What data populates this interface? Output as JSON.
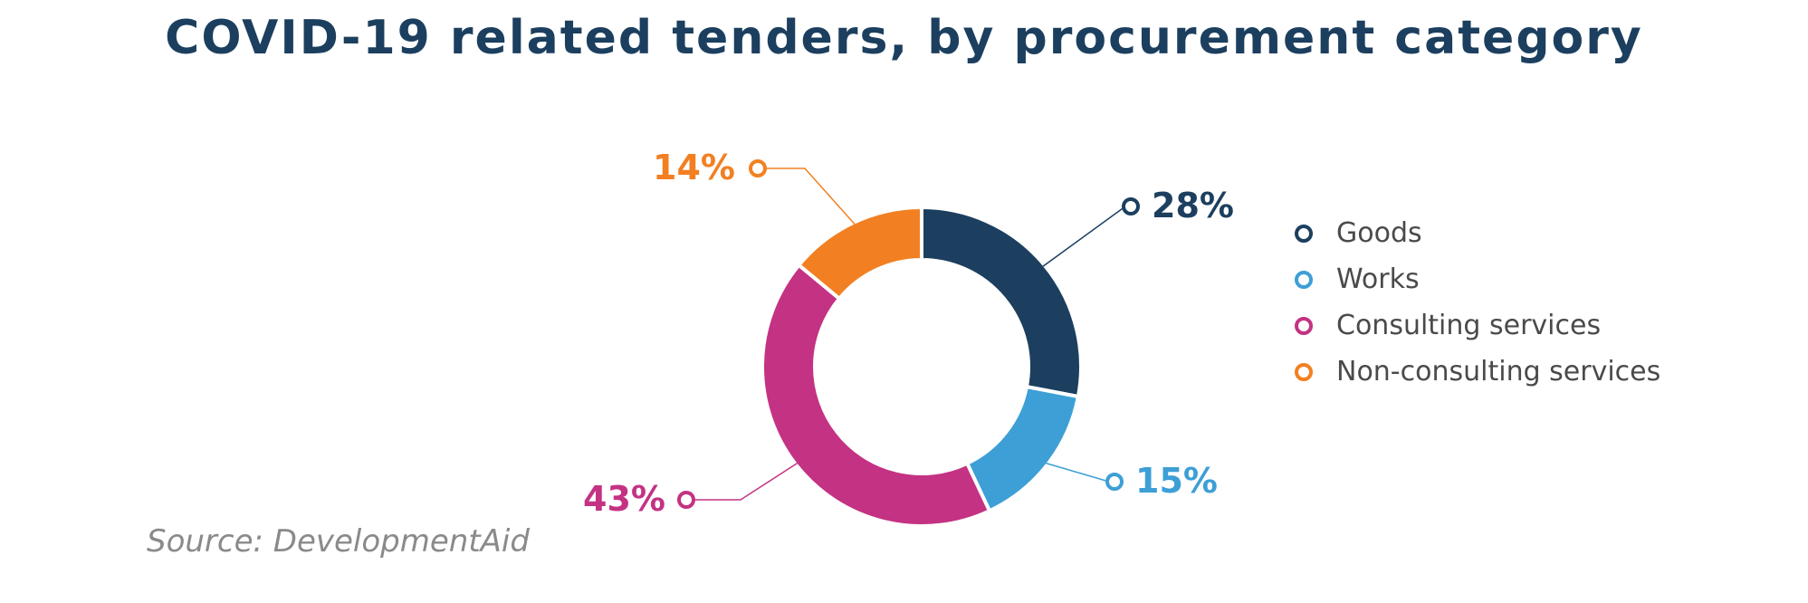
{
  "chart_data": {
    "type": "pie",
    "title": "COVID-19 related tenders, by procurement category",
    "categories": [
      "Goods",
      "Works",
      "Consulting services",
      "Non-consulting services"
    ],
    "values": [
      28,
      15,
      43,
      14
    ],
    "value_labels": [
      "28%",
      "15%",
      "43%",
      "14%"
    ],
    "colors": [
      "#1c3f5f",
      "#3d9fd6",
      "#c43283",
      "#f28022"
    ],
    "donut": true,
    "legend_position": "right",
    "source": "Source: DevelopmentAid"
  }
}
